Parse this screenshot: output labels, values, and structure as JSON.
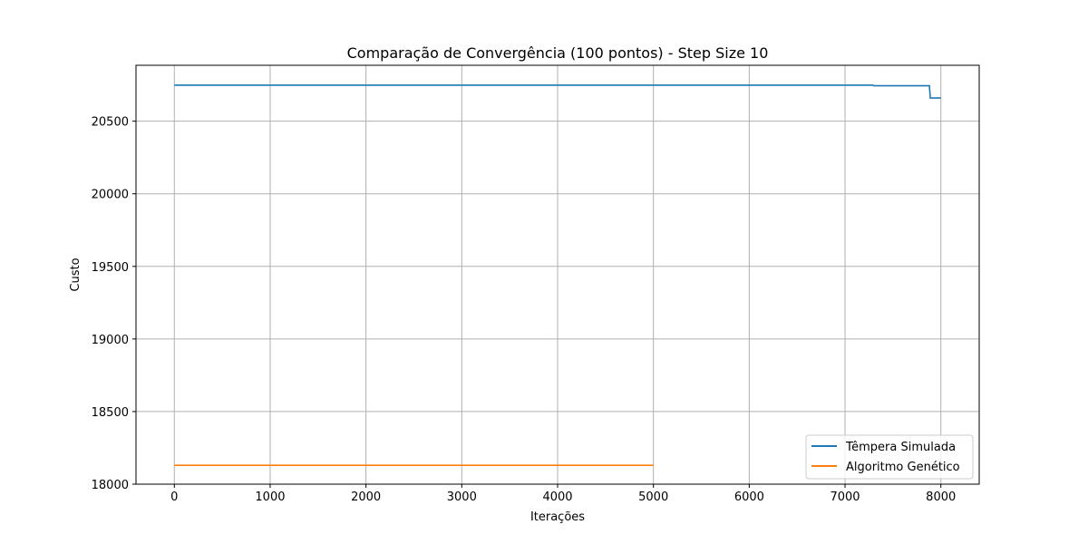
{
  "chart_data": {
    "type": "line",
    "title": "Comparação de Convergência (100 pontos) - Step Size 10",
    "xlabel": "Iterações",
    "ylabel": "Custo",
    "xlim": [
      -400,
      8400
    ],
    "ylim": [
      18000,
      20885
    ],
    "xticks": [
      0,
      1000,
      2000,
      3000,
      4000,
      5000,
      6000,
      7000,
      8000
    ],
    "yticks": [
      18000,
      18500,
      19000,
      19500,
      20000,
      20500
    ],
    "grid": true,
    "legend_position": "bottom-right",
    "series": [
      {
        "name": "Têmpera Simulada",
        "color": "#1f77b4",
        "x": [
          0,
          7290,
          7300,
          7880,
          7890,
          8000
        ],
        "y": [
          20748,
          20748,
          20744,
          20744,
          20660,
          20660
        ]
      },
      {
        "name": "Algoritmo Genético",
        "color": "#ff7f0e",
        "x": [
          0,
          5000
        ],
        "y": [
          18130,
          18130
        ]
      }
    ]
  }
}
